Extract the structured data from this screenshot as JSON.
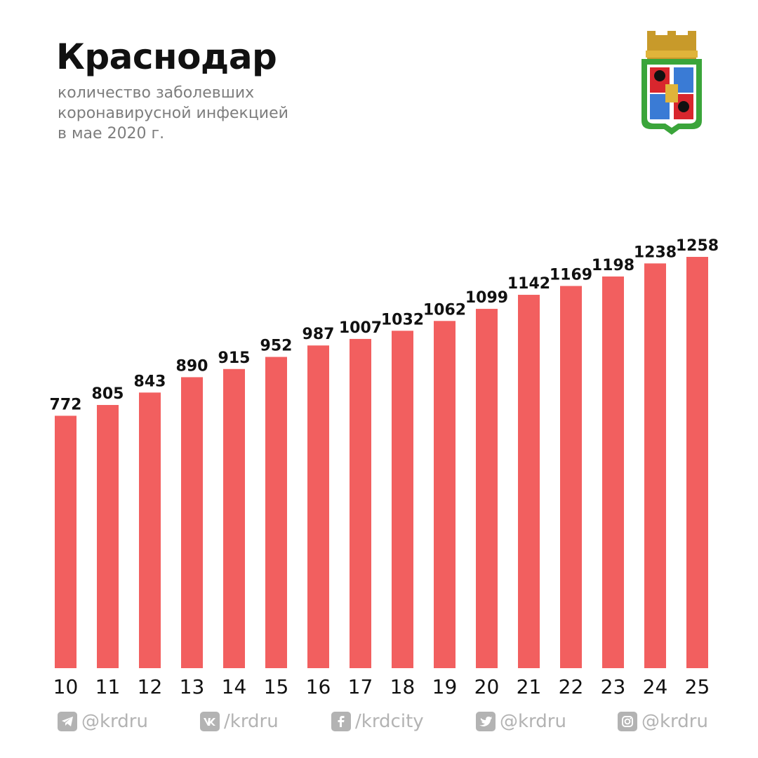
{
  "header": {
    "title": "Краснодар",
    "subtitle_lines": [
      "количество заболевших",
      "коронавирусной инфекцией",
      "в мае 2020 г."
    ]
  },
  "colors": {
    "bar": "#f25f5f",
    "text": "#111111",
    "subtitle": "#7d7d7d",
    "footer": "#b3b3b3"
  },
  "chart_data": {
    "type": "bar",
    "categories": [
      "10",
      "11",
      "12",
      "13",
      "14",
      "15",
      "16",
      "17",
      "18",
      "19",
      "20",
      "21",
      "22",
      "23",
      "24",
      "25"
    ],
    "values": [
      772,
      805,
      843,
      890,
      915,
      952,
      987,
      1007,
      1032,
      1062,
      1099,
      1142,
      1169,
      1198,
      1238,
      1258
    ],
    "title": "Краснодар",
    "xlabel": "",
    "ylabel": "",
    "ylim": [
      0,
      1258
    ],
    "grid": false,
    "data_labels": true
  },
  "footer": {
    "items": [
      {
        "icon": "telegram-icon",
        "text": "@krdru"
      },
      {
        "icon": "vk-icon",
        "text": "/krdru"
      },
      {
        "icon": "facebook-icon",
        "text": "/krdcity"
      },
      {
        "icon": "twitter-icon",
        "text": "@krdru"
      },
      {
        "icon": "instagram-icon",
        "text": "@krdru"
      }
    ]
  }
}
